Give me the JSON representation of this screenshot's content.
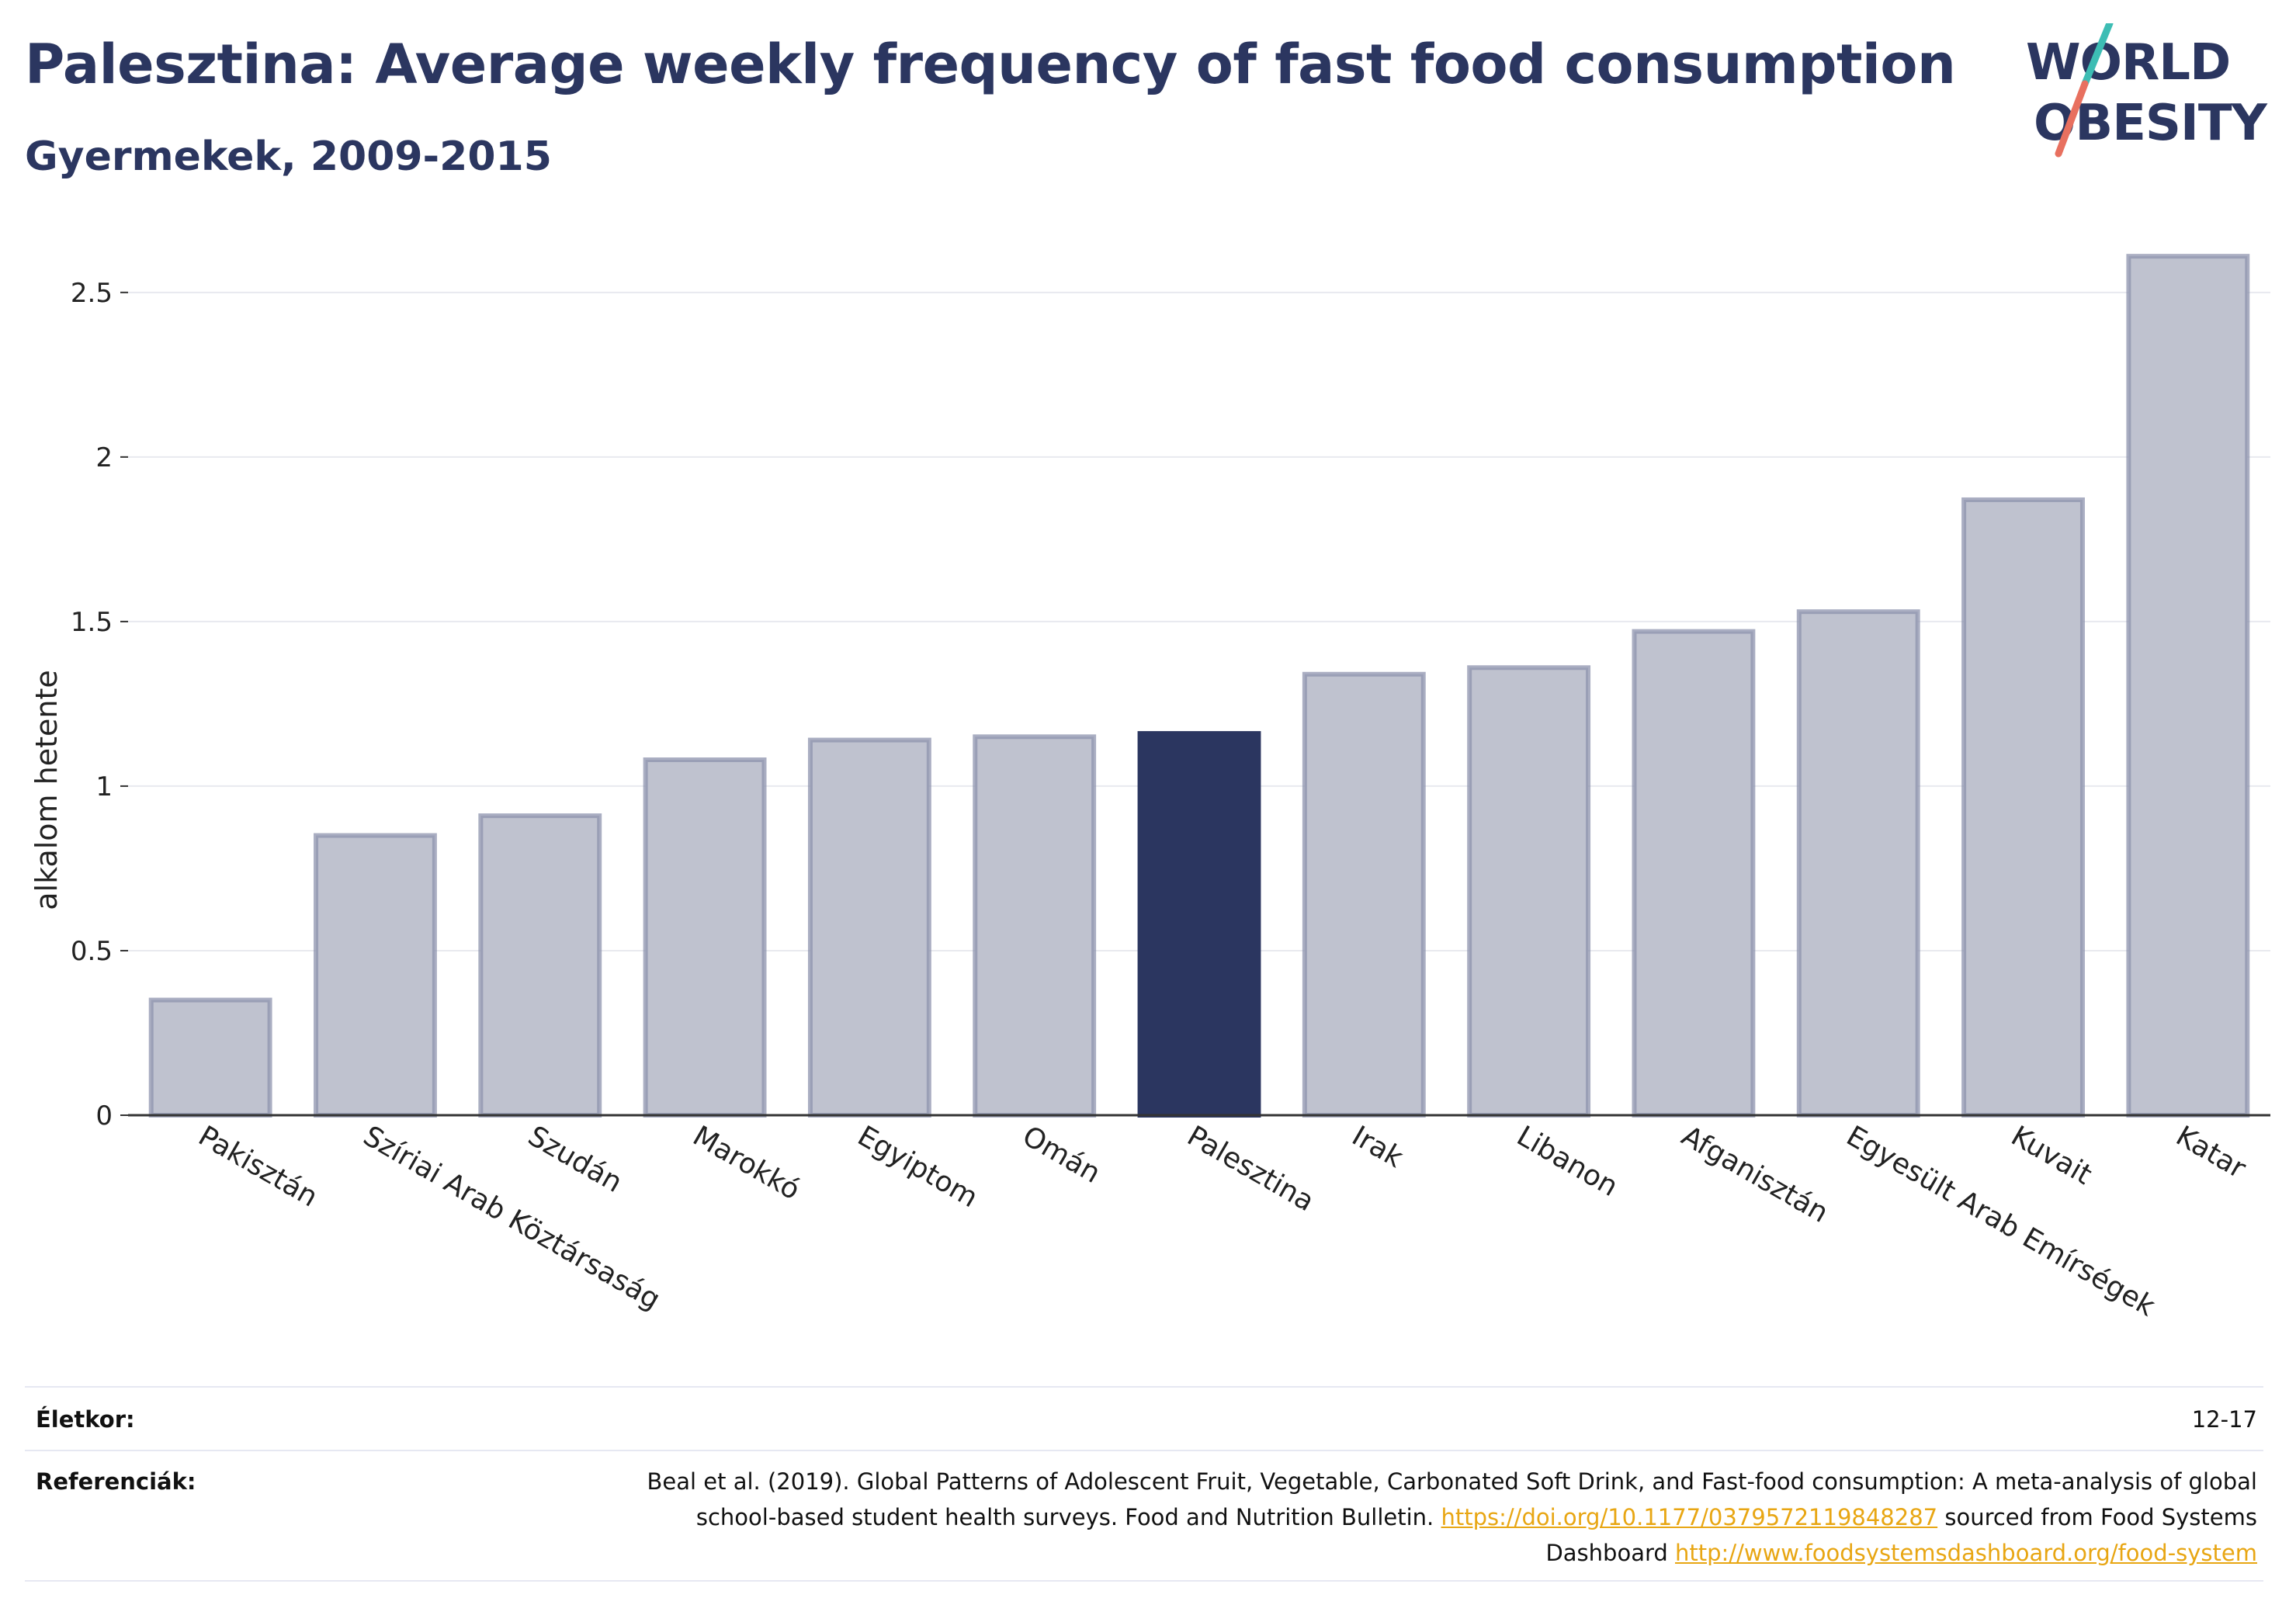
{
  "header": {
    "title": "Palesztina: Average weekly frequency of fast food consumption",
    "subtitle": "Gyermekek, 2009-2015"
  },
  "logo": {
    "line1": "WORLD",
    "line2": "OBESITY",
    "colors": {
      "text": "#2b3660",
      "slash_top": "#3dbdb4",
      "slash_bottom": "#e8705f"
    }
  },
  "colors": {
    "bar": "#bfc2cf",
    "bar_border": "#8d93ad",
    "highlight": "#2b3660",
    "grid": "#e8e9ef",
    "axis": "#333333",
    "link": "#e8a613"
  },
  "chart_data": {
    "type": "bar",
    "categories": [
      "Pakisztán",
      "Szíriai Arab Köztársaság",
      "Szudán",
      "Marokkó",
      "Egyiptom",
      "Omán",
      "Palesztina",
      "Irak",
      "Libanon",
      "Afganisztán",
      "Egyesült Arab Emírségek",
      "Kuvait",
      "Katar"
    ],
    "values": [
      0.35,
      0.85,
      0.91,
      1.08,
      1.14,
      1.15,
      1.16,
      1.34,
      1.36,
      1.47,
      1.53,
      1.87,
      2.61
    ],
    "highlight": "Palesztina",
    "title": "Palesztina: Average weekly frequency of fast food consumption",
    "subtitle": "Gyermekek, 2009-2015",
    "xlabel": "",
    "ylabel": "alkalom hetente",
    "ylim": [
      0,
      2.7
    ],
    "yticks": [
      0,
      0.5,
      1,
      1.5,
      2,
      2.5
    ],
    "ytick_labels": [
      "0",
      "0.5",
      "1",
      "1.5",
      "2",
      "2.5"
    ],
    "grid": true,
    "legend": "none"
  },
  "info": {
    "age_label": "Életkor:",
    "age_value": "12-17",
    "refs_label": "Referenciák:",
    "refs_text_1": "Beal et al. (2019). Global Patterns of Adolescent Fruit, Vegetable, Carbonated Soft Drink, and Fast-food consumption: A meta-analysis of global school-based student health surveys. Food and Nutrition Bulletin. ",
    "refs_link_1": "https://doi.org/10.1177/0379572119848287",
    "refs_text_2": " sourced from Food Systems Dashboard ",
    "refs_link_2": "http://www.foodsystemsdashboard.org/food-system"
  }
}
